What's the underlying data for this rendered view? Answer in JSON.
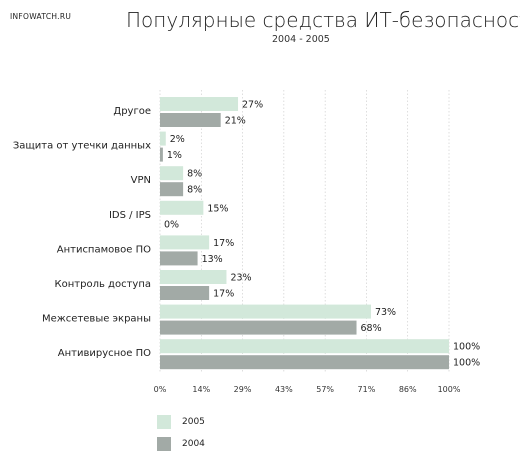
{
  "brand": "INFOWATCH.RU",
  "chart_data": {
    "type": "bar",
    "orientation": "horizontal",
    "title": "Популярные средства ИТ-безопасности",
    "subtitle": "2004 - 2005",
    "categories": [
      "Другое",
      "Защита от утечки данных",
      "VPN",
      "IDS / IPS",
      "Антиспамовое ПО",
      "Контроль доступа",
      "Межсетевые экраны",
      "Антивирусное ПО"
    ],
    "series": [
      {
        "name": "2005",
        "color": "#d2e8da",
        "values": [
          27,
          2,
          8,
          15,
          17,
          23,
          73,
          100
        ]
      },
      {
        "name": "2004",
        "color": "#a2aaa6",
        "values": [
          21,
          1,
          8,
          0,
          13,
          17,
          68,
          100
        ]
      }
    ],
    "xlim": [
      0,
      100
    ],
    "xticks": [
      "0%",
      "14%",
      "29%",
      "43%",
      "57%",
      "71%",
      "86%",
      "100%"
    ],
    "grid": true,
    "legend_position": "bottom-left"
  }
}
